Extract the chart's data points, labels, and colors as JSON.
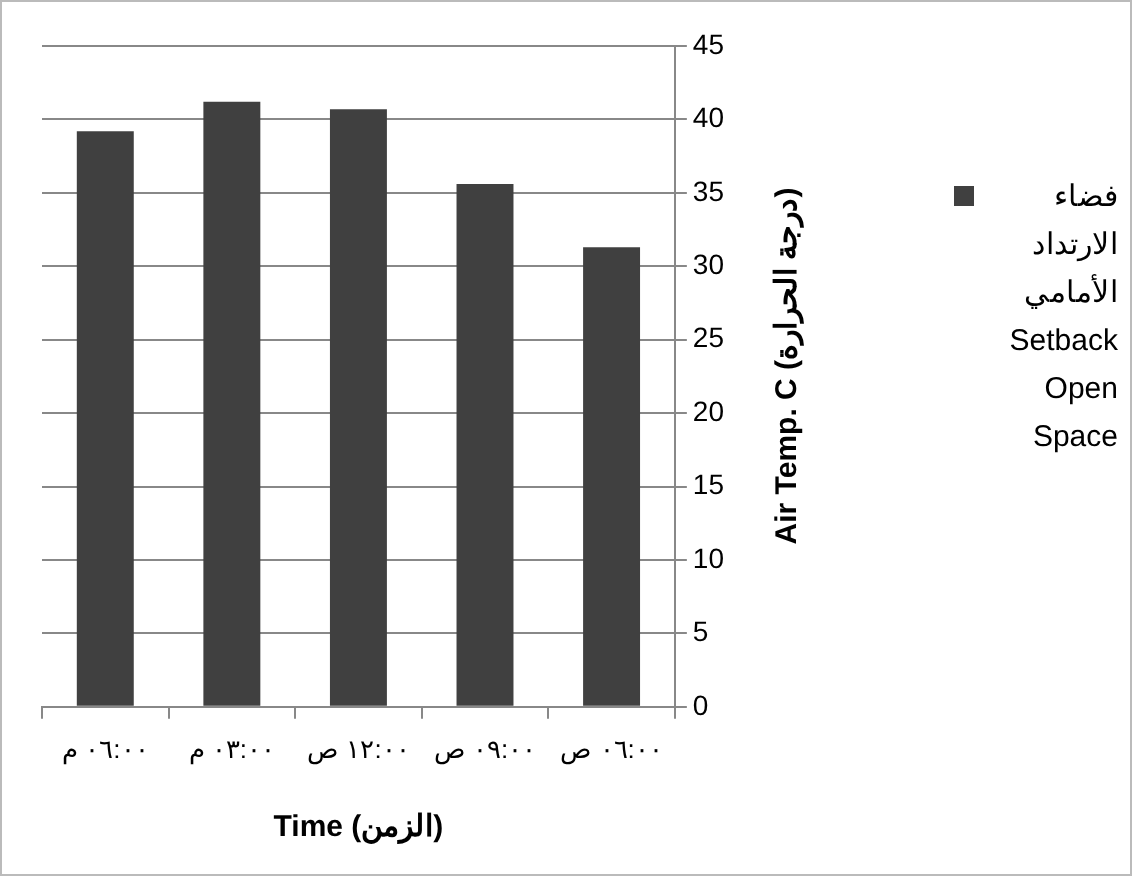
{
  "chart_data": {
    "type": "bar",
    "xlabel": "Time (الزمن)",
    "ylabel": "Air Temp. C (درجة الحرارة)",
    "categories": [
      "٠٦:٠٠ م",
      "٠٣:٠٠ م",
      "١٢:٠٠ ص",
      "٠٩:٠٠ ص",
      "٠٦:٠٠ ص"
    ],
    "series": [
      {
        "name": "فضاء الارتداد الأمامي Setback Open Space",
        "color": "#404040",
        "values": [
          39.2,
          41.2,
          40.7,
          35.6,
          31.3
        ]
      }
    ],
    "ylim": [
      0,
      45
    ],
    "yticks": [
      0,
      5,
      10,
      15,
      20,
      25,
      30,
      35,
      40,
      45
    ],
    "grid": "y",
    "legend": "right"
  }
}
